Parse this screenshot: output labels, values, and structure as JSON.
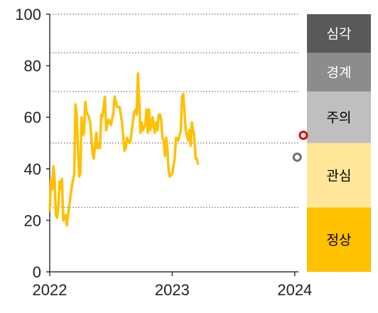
{
  "chart_data": {
    "type": "line",
    "title": "",
    "xlabel": "",
    "ylabel": "",
    "ylim": [
      0,
      100
    ],
    "xlim": [
      2022.0,
      2024.03
    ],
    "y_ticks": [
      "0",
      "20",
      "40",
      "60",
      "80",
      "100"
    ],
    "x_ticks": [
      "2022",
      "2023",
      "2024"
    ],
    "grid": "dotted horizontal lines at band boundaries",
    "series": [
      {
        "color": "#FFC000",
        "points": [
          [
            2022.0,
            24
          ],
          [
            2022.01,
            36
          ],
          [
            2022.02,
            32
          ],
          [
            2022.03,
            41
          ],
          [
            2022.04,
            36
          ],
          [
            2022.05,
            22
          ],
          [
            2022.06,
            21
          ],
          [
            2022.07,
            25
          ],
          [
            2022.08,
            35
          ],
          [
            2022.09,
            32
          ],
          [
            2022.1,
            36
          ],
          [
            2022.11,
            20
          ],
          [
            2022.13,
            22
          ],
          [
            2022.14,
            18
          ],
          [
            2022.16,
            26
          ],
          [
            2022.18,
            33
          ],
          [
            2022.2,
            38
          ],
          [
            2022.21,
            65
          ],
          [
            2022.22,
            61
          ],
          [
            2022.24,
            37
          ],
          [
            2022.25,
            38
          ],
          [
            2022.26,
            60
          ],
          [
            2022.27,
            53
          ],
          [
            2022.28,
            54
          ],
          [
            2022.29,
            66
          ],
          [
            2022.3,
            62
          ],
          [
            2022.32,
            60
          ],
          [
            2022.33,
            58
          ],
          [
            2022.35,
            46
          ],
          [
            2022.36,
            44
          ],
          [
            2022.38,
            54
          ],
          [
            2022.39,
            48
          ],
          [
            2022.4,
            49
          ],
          [
            2022.41,
            48
          ],
          [
            2022.42,
            61
          ],
          [
            2022.43,
            60
          ],
          [
            2022.45,
            68
          ],
          [
            2022.46,
            55
          ],
          [
            2022.48,
            59
          ],
          [
            2022.5,
            57
          ],
          [
            2022.52,
            62
          ],
          [
            2022.53,
            68
          ],
          [
            2022.55,
            64
          ],
          [
            2022.57,
            64
          ],
          [
            2022.59,
            58
          ],
          [
            2022.61,
            47
          ],
          [
            2022.62,
            48
          ],
          [
            2022.63,
            52
          ],
          [
            2022.65,
            50
          ],
          [
            2022.66,
            51
          ],
          [
            2022.67,
            55
          ],
          [
            2022.69,
            62
          ],
          [
            2022.7,
            63
          ],
          [
            2022.71,
            61
          ],
          [
            2022.72,
            77
          ],
          [
            2022.73,
            67
          ],
          [
            2022.74,
            54
          ],
          [
            2022.75,
            58
          ],
          [
            2022.76,
            55
          ],
          [
            2022.78,
            57
          ],
          [
            2022.79,
            63
          ],
          [
            2022.8,
            54
          ],
          [
            2022.81,
            63
          ],
          [
            2022.82,
            55
          ],
          [
            2022.84,
            60
          ],
          [
            2022.85,
            56
          ],
          [
            2022.86,
            54
          ],
          [
            2022.87,
            58
          ],
          [
            2022.88,
            55
          ],
          [
            2022.89,
            61
          ],
          [
            2022.9,
            61
          ],
          [
            2022.91,
            59
          ],
          [
            2022.92,
            52
          ],
          [
            2022.93,
            51
          ],
          [
            2022.94,
            45
          ],
          [
            2022.95,
            52
          ],
          [
            2022.96,
            48
          ],
          [
            2022.97,
            40
          ],
          [
            2022.98,
            37
          ],
          [
            2023.0,
            38
          ],
          [
            2023.02,
            44
          ],
          [
            2023.03,
            52
          ],
          [
            2023.04,
            52
          ],
          [
            2023.05,
            51
          ],
          [
            2023.07,
            55
          ],
          [
            2023.08,
            68
          ],
          [
            2023.09,
            69
          ],
          [
            2023.1,
            62
          ],
          [
            2023.11,
            55
          ],
          [
            2023.12,
            53
          ],
          [
            2023.13,
            51
          ],
          [
            2023.14,
            55
          ],
          [
            2023.15,
            49
          ],
          [
            2023.16,
            58
          ],
          [
            2023.17,
            55
          ],
          [
            2023.18,
            53
          ],
          [
            2023.19,
            44
          ],
          [
            2023.2,
            44
          ],
          [
            2023.21,
            42
          ]
        ]
      }
    ],
    "markers": [
      {
        "x": 2024.03,
        "y": 53,
        "color": "#E00000",
        "style": "hollow-circle"
      },
      {
        "x": 2024.02,
        "y": 44.5,
        "color": "#707070",
        "style": "hollow-circle"
      }
    ],
    "bands": [
      {
        "label": "정상",
        "range": [
          0,
          25
        ],
        "color": "#FFC000",
        "text_color": "#000000"
      },
      {
        "label": "관심",
        "range": [
          25,
          50
        ],
        "color": "#FFE699",
        "text_color": "#000000"
      },
      {
        "label": "주의",
        "range": [
          50,
          70
        ],
        "color": "#BFBFBF",
        "text_color": "#000000"
      },
      {
        "label": "경계",
        "range": [
          70,
          85
        ],
        "color": "#8C8C8C",
        "text_color": "#ffffff"
      },
      {
        "label": "심각",
        "range": [
          85,
          100
        ],
        "color": "#595959",
        "text_color": "#ffffff"
      }
    ]
  }
}
